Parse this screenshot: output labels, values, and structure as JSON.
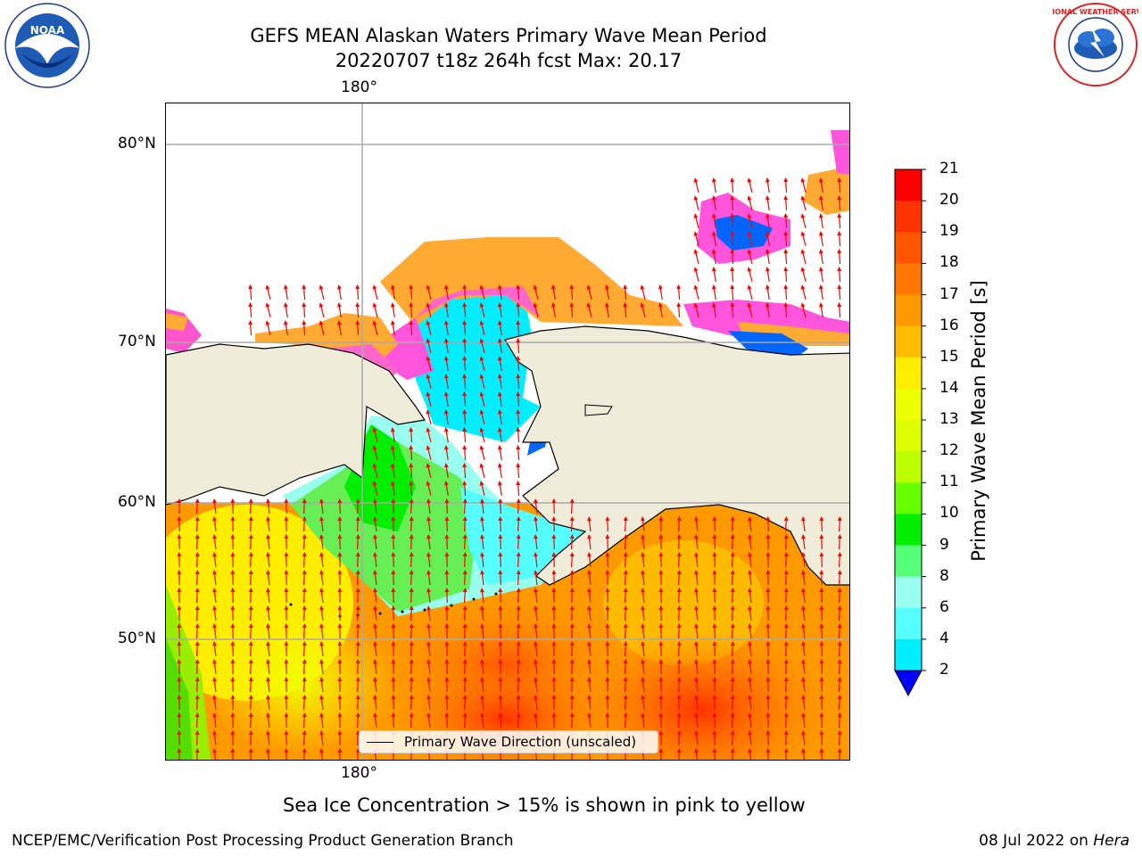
{
  "title_line1": "GEFS MEAN Alaskan Waters Primary Wave Mean Period",
  "title_line2": "20220707 t18z 264h fcst   Max: 20.17",
  "map": {
    "lon_labels": [
      "180°",
      "180°"
    ],
    "lat_labels": [
      "80°N",
      "70°N",
      "60°N",
      "50°N"
    ],
    "land_color": "#efedda",
    "legend_label": "Primary Wave Direction (unscaled)",
    "arrow_color": "#ff0000"
  },
  "colorbar": {
    "label": "Primary Wave Mean Period [s]",
    "ticks": [
      "21",
      "20",
      "19",
      "18",
      "17",
      "16",
      "15",
      "14",
      "13",
      "12",
      "11",
      "10",
      "9",
      "8",
      "6",
      "4",
      "2"
    ],
    "colors": [
      "#ff0000",
      "#ff3300",
      "#ff5500",
      "#ff7700",
      "#ff9900",
      "#ffbb00",
      "#ffee00",
      "#eeff00",
      "#ddff00",
      "#bbff00",
      "#66ff00",
      "#00ee00",
      "#55ff77",
      "#99ffee",
      "#55ffff",
      "#00eeff",
      "#00aaff",
      "#0066ff"
    ],
    "extend_color": "#0000ff"
  },
  "caption": "Sea Ice Concentration > 15% is shown in pink to yellow",
  "footer_left": "NCEP/EMC/Verification Post Processing Product Generation Branch",
  "footer_date": "08 Jul 2022 on",
  "footer_machine": "Hera",
  "logos": {
    "noaa_text": "NOAA",
    "nws_text": "NATIONAL WEATHER SERVICE"
  }
}
